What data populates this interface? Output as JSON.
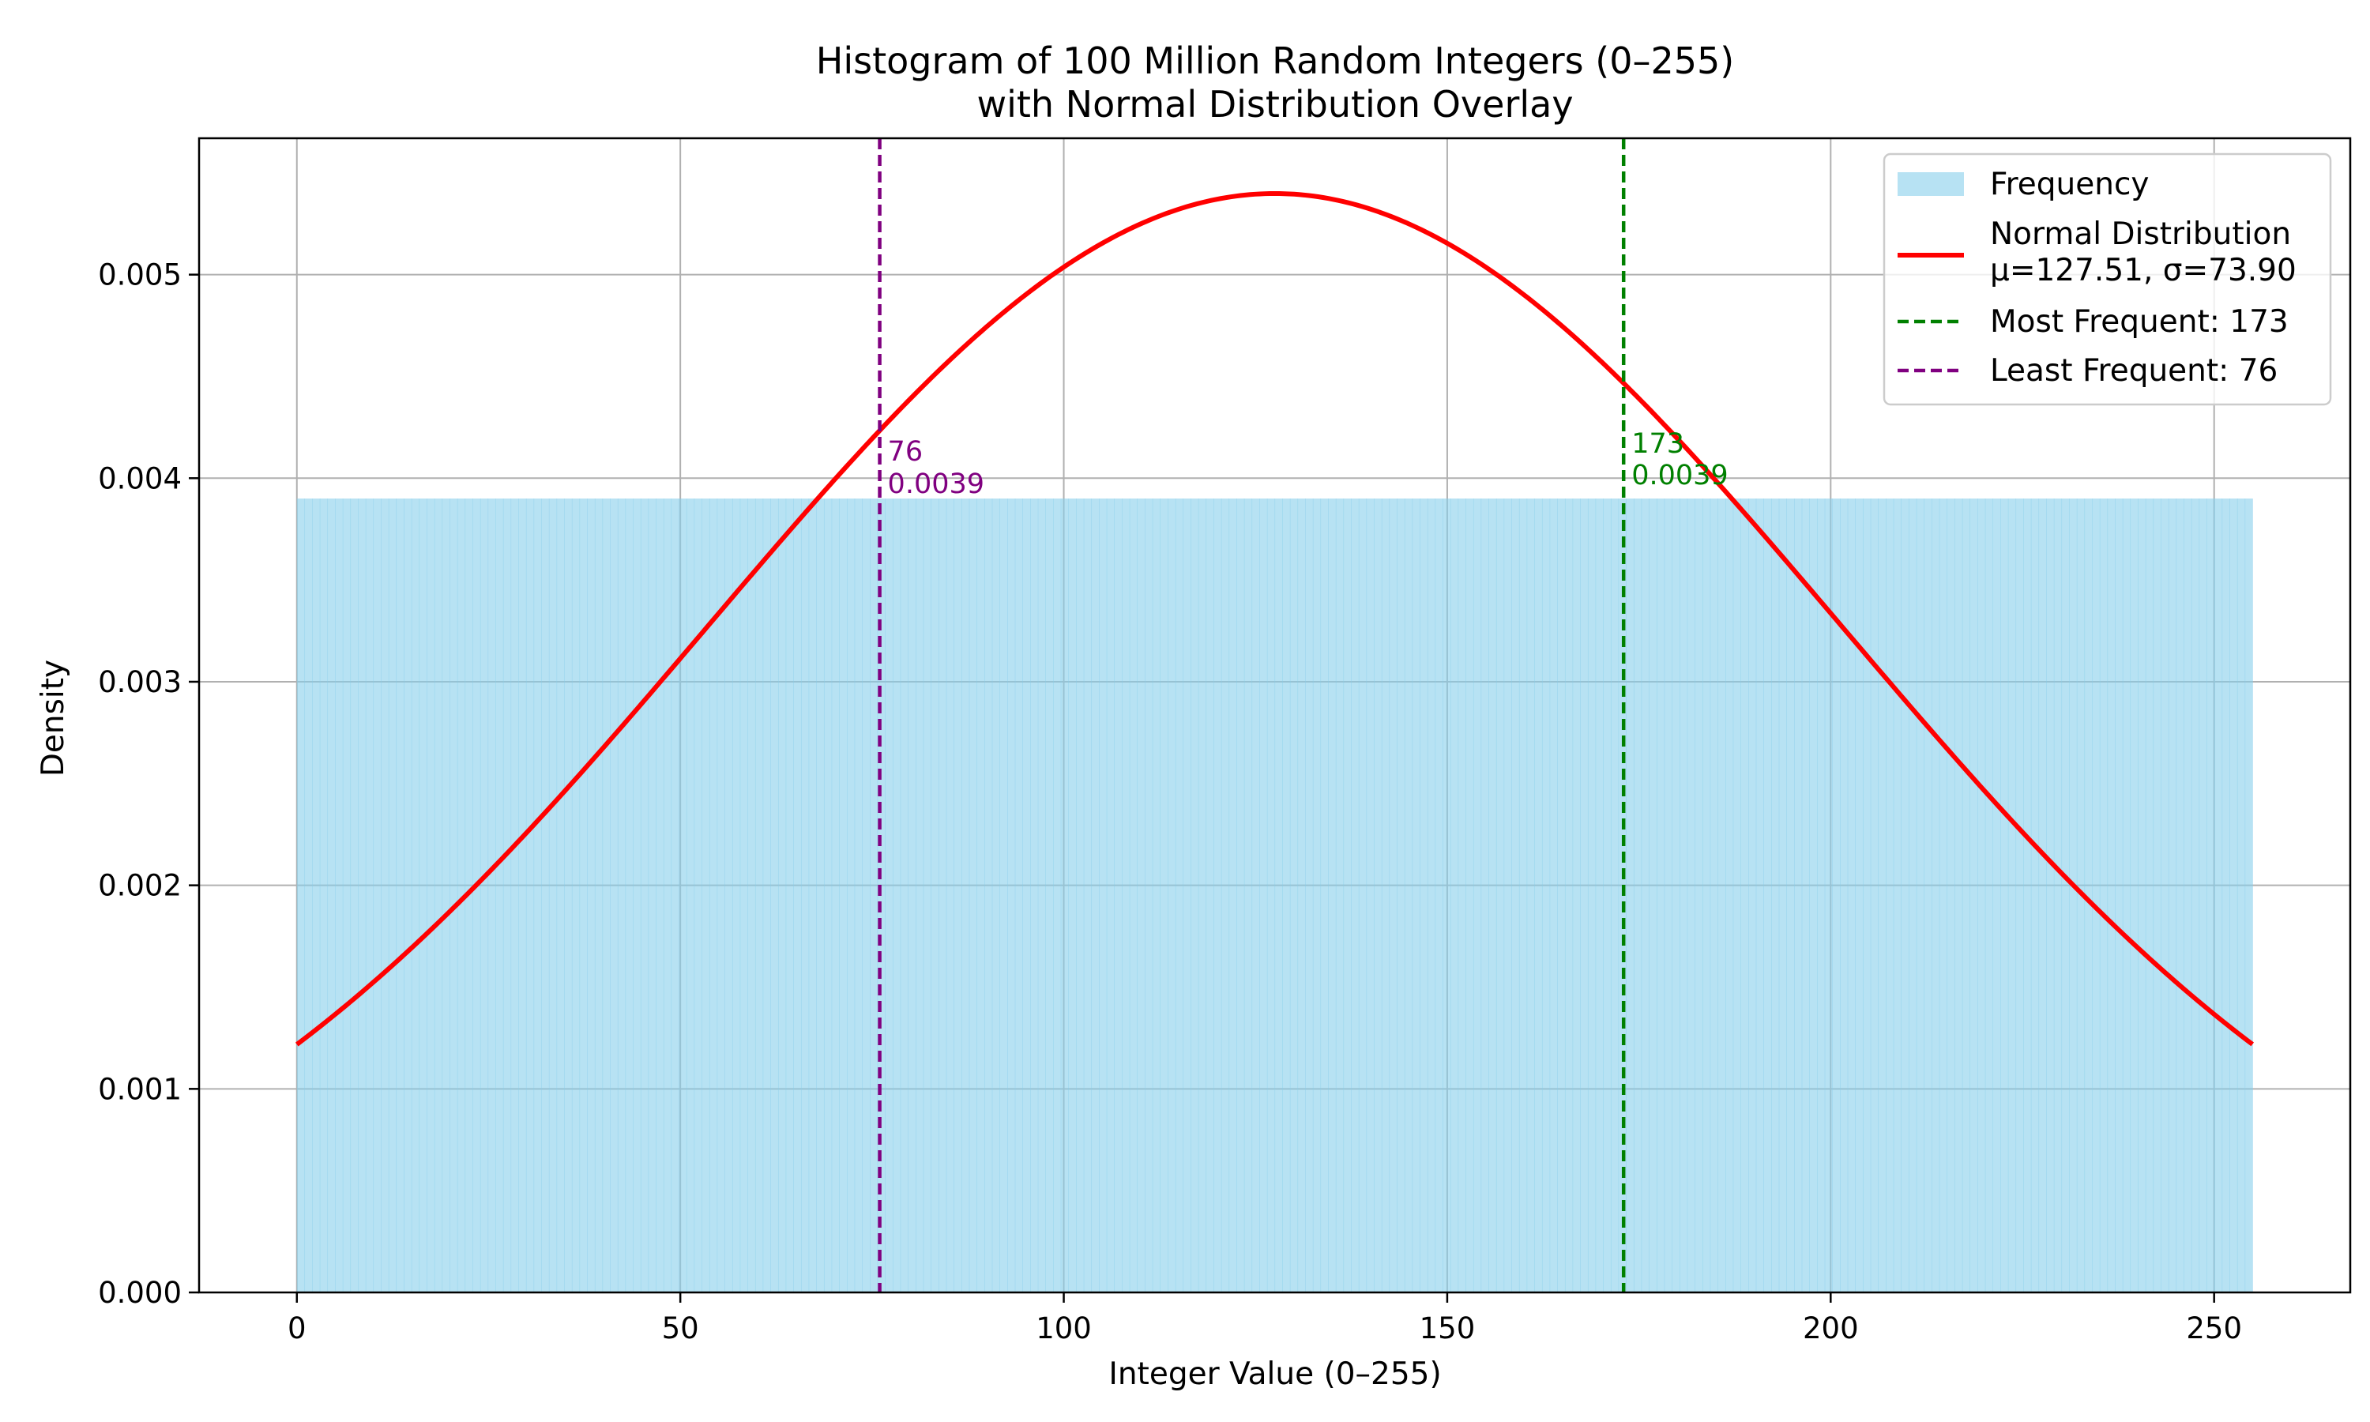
{
  "chart_data": {
    "type": "bar",
    "title_line1": "Histogram of 100 Million Random Integers (0–255)",
    "title_line2": "with Normal Distribution Overlay",
    "xlabel": "Integer Value (0–255)",
    "ylabel": "Density",
    "xlim": [
      -12.75,
      267.75
    ],
    "ylim": [
      0,
      0.00567
    ],
    "x_ticks": [
      0,
      50,
      100,
      150,
      200,
      250
    ],
    "x_tick_labels": [
      "0",
      "50",
      "100",
      "150",
      "200",
      "250"
    ],
    "y_ticks": [
      0,
      0.001,
      0.002,
      0.003,
      0.004,
      0.005
    ],
    "y_tick_labels": [
      "0.000",
      "0.001",
      "0.002",
      "0.003",
      "0.004",
      "0.005"
    ],
    "grid": true,
    "histogram": {
      "name": "Frequency",
      "color": "#87ceeb",
      "bin_start": 0,
      "bin_end": 255,
      "num_bins": 256,
      "density": 0.0039
    },
    "normal_curve": {
      "name": "Normal Distribution",
      "name_line2": "μ=127.51, σ=73.90",
      "mu": 127.51,
      "sigma": 73.9,
      "x_range": [
        0,
        255
      ],
      "color": "#ff0000"
    },
    "vlines": [
      {
        "name": "Most Frequent: 173",
        "x": 173,
        "color": "#008000",
        "annot_value": "173",
        "annot_density": "0.0039"
      },
      {
        "name": "Least Frequent: 76",
        "x": 76,
        "color": "#800080",
        "annot_value": "76",
        "annot_density": "0.0039"
      }
    ],
    "legend_position": "upper right"
  }
}
